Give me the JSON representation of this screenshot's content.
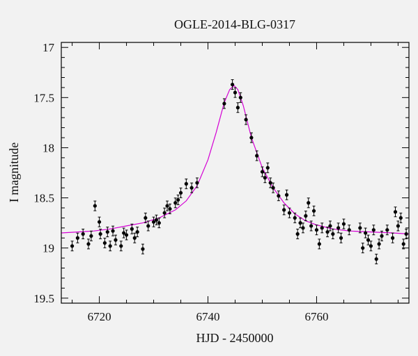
{
  "chart_data": {
    "type": "scatter",
    "title": "OGLE-2014-BLG-0317",
    "xlabel": "HJD - 2450000",
    "ylabel": "I magnitude",
    "xlim": [
      6713,
      6777
    ],
    "ylim": [
      19.55,
      16.95
    ],
    "y_inverted": true,
    "xticks": [
      6720,
      6740,
      6760
    ],
    "yticks": [
      17,
      17.5,
      18,
      18.5,
      19,
      19.5
    ],
    "ytick_labels": [
      "17",
      "17.5",
      "18",
      "18.5",
      "19",
      "19.5"
    ],
    "grid": false,
    "colors": {
      "points": "#000000",
      "model": "#d400d4",
      "axes": "#000000"
    },
    "model": {
      "name": "",
      "x": [
        6713,
        6716,
        6719,
        6722,
        6725,
        6728,
        6731,
        6734,
        6736,
        6738,
        6740,
        6741.5,
        6743,
        6744,
        6744.8,
        6745.5,
        6746.5,
        6748,
        6750,
        6752,
        6754,
        6756,
        6758,
        6760,
        6763,
        6766,
        6770,
        6774,
        6777
      ],
      "y": [
        18.85,
        18.84,
        18.83,
        18.81,
        18.78,
        18.75,
        18.7,
        18.62,
        18.53,
        18.38,
        18.12,
        17.85,
        17.55,
        17.42,
        17.38,
        17.42,
        17.58,
        17.9,
        18.2,
        18.4,
        18.55,
        18.66,
        18.73,
        18.77,
        18.81,
        18.83,
        18.84,
        18.85,
        18.86
      ]
    },
    "series": [
      {
        "name": "",
        "x": [
          6715,
          6716,
          6717,
          6718,
          6718.5,
          6719.2,
          6720,
          6720.2,
          6721,
          6721.5,
          6722,
          6722.5,
          6723,
          6724,
          6724.5,
          6725,
          6726,
          6726.5,
          6727,
          6728,
          6728.5,
          6729,
          6730,
          6730.5,
          6731,
          6732,
          6732.5,
          6733,
          6734,
          6734.5,
          6735,
          6736,
          6737,
          6738,
          6743,
          6744.5,
          6745,
          6745.5,
          6746,
          6747,
          6748,
          6749,
          6750,
          6750.5,
          6751,
          6751.5,
          6752,
          6753,
          6754,
          6754.5,
          6755,
          6756,
          6756.5,
          6757,
          6757.5,
          6758,
          6758.5,
          6759,
          6759.5,
          6760,
          6760.5,
          6761,
          6762,
          6762.5,
          6763,
          6764,
          6764.5,
          6765,
          6766,
          6768,
          6768.5,
          6769,
          6769.5,
          6770,
          6770.5,
          6771,
          6771.5,
          6772,
          6773,
          6774,
          6774.5,
          6775,
          6775.5,
          6776,
          6776.5
        ],
        "y": [
          18.98,
          18.9,
          18.86,
          18.96,
          18.88,
          18.58,
          18.74,
          18.86,
          18.95,
          18.84,
          18.98,
          18.83,
          18.92,
          18.98,
          18.85,
          18.87,
          18.81,
          18.9,
          18.84,
          19.01,
          18.7,
          18.78,
          18.74,
          18.72,
          18.75,
          18.65,
          18.58,
          18.61,
          18.55,
          18.52,
          18.45,
          18.36,
          18.4,
          18.35,
          17.56,
          17.37,
          17.45,
          17.6,
          17.5,
          17.72,
          17.9,
          18.08,
          18.24,
          18.3,
          18.2,
          18.35,
          18.4,
          18.48,
          18.62,
          18.47,
          18.65,
          18.7,
          18.86,
          18.75,
          18.8,
          18.68,
          18.55,
          18.78,
          18.63,
          18.82,
          18.96,
          18.8,
          18.84,
          18.78,
          18.86,
          18.8,
          18.9,
          18.76,
          18.82,
          18.8,
          19.0,
          18.85,
          18.92,
          18.98,
          18.82,
          19.11,
          18.96,
          18.88,
          18.82,
          18.9,
          18.64,
          18.78,
          18.7,
          18.96,
          18.86
        ]
      }
    ]
  }
}
